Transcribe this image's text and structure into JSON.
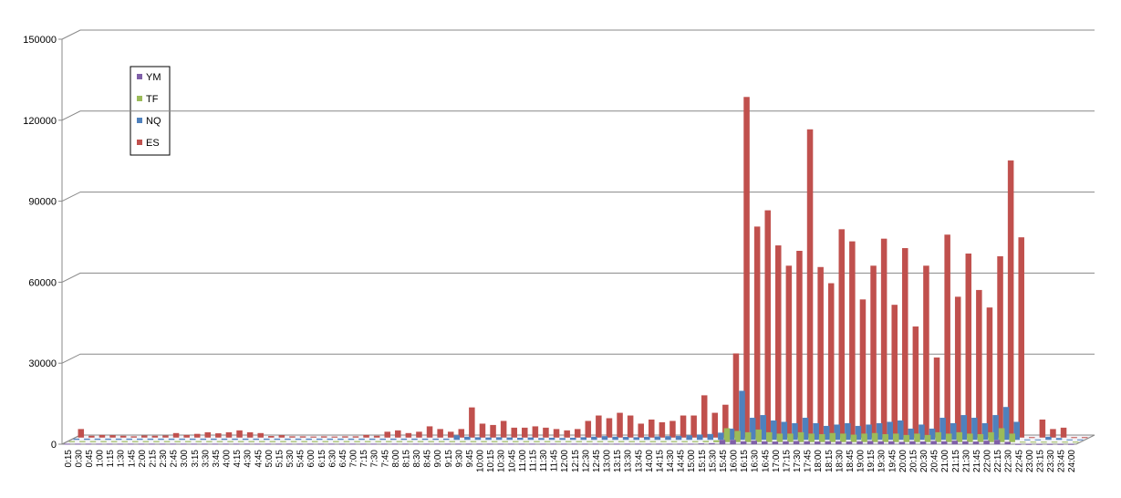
{
  "chart_data": {
    "type": "bar",
    "categories": [
      "0:15",
      "0:30",
      "0:45",
      "1:00",
      "1:15",
      "1:30",
      "1:45",
      "2:00",
      "2:15",
      "2:30",
      "2:45",
      "3:00",
      "3:15",
      "3:30",
      "3:45",
      "4:00",
      "4:15",
      "4:30",
      "4:45",
      "5:00",
      "5:15",
      "5:30",
      "5:45",
      "6:00",
      "6:15",
      "6:30",
      "6:45",
      "7:00",
      "7:15",
      "7:30",
      "7:45",
      "8:00",
      "8:15",
      "8:30",
      "8:45",
      "9:00",
      "9:15",
      "9:30",
      "9:45",
      "10:00",
      "10:15",
      "10:30",
      "10:45",
      "11:00",
      "11:15",
      "11:30",
      "11:45",
      "12:00",
      "12:15",
      "12:30",
      "12:45",
      "13:00",
      "13:15",
      "13:30",
      "13:45",
      "14:00",
      "14:15",
      "14:30",
      "14:45",
      "15:00",
      "15:15",
      "15:30",
      "15:45",
      "16:00",
      "16:15",
      "16:30",
      "16:45",
      "17:00",
      "17:15",
      "17:30",
      "17:45",
      "18:00",
      "18:15",
      "18:30",
      "18:45",
      "19:00",
      "19:15",
      "19:30",
      "19:45",
      "20:00",
      "20:15",
      "20:30",
      "20:45",
      "21:00",
      "21:15",
      "21:30",
      "21:45",
      "22:00",
      "22:15",
      "22:30",
      "22:45",
      "23:00",
      "23:15",
      "23:30",
      "23:45",
      "24:00"
    ],
    "series": [
      {
        "name": "YM",
        "color": "#7f5fa8",
        "values": [
          100,
          100,
          100,
          100,
          100,
          100,
          100,
          100,
          100,
          100,
          100,
          100,
          100,
          100,
          100,
          100,
          100,
          100,
          100,
          100,
          100,
          100,
          100,
          100,
          100,
          100,
          100,
          100,
          100,
          100,
          100,
          100,
          100,
          100,
          100,
          100,
          100,
          100,
          100,
          100,
          100,
          100,
          100,
          100,
          100,
          100,
          100,
          100,
          100,
          100,
          100,
          100,
          100,
          100,
          100,
          100,
          100,
          100,
          100,
          100,
          200,
          300,
          1500,
          1500,
          1000,
          1200,
          1000,
          900,
          1000,
          1100,
          1000,
          900,
          1000,
          1000,
          900,
          1000,
          1100,
          1000,
          1000,
          800,
          1000,
          900,
          1100,
          1000,
          1200,
          1000,
          900,
          1200,
          1500,
          800,
          0,
          0,
          0,
          0,
          0,
          0
        ]
      },
      {
        "name": "TF",
        "color": "#9bbb59",
        "values": [
          200,
          200,
          200,
          200,
          200,
          200,
          200,
          200,
          200,
          200,
          200,
          200,
          200,
          200,
          200,
          200,
          200,
          200,
          200,
          200,
          200,
          200,
          200,
          200,
          200,
          200,
          200,
          200,
          200,
          200,
          200,
          200,
          200,
          200,
          200,
          200,
          200,
          200,
          200,
          200,
          200,
          200,
          200,
          200,
          200,
          200,
          200,
          200,
          200,
          200,
          200,
          200,
          200,
          200,
          200,
          200,
          200,
          200,
          200,
          200,
          300,
          500,
          5000,
          4000,
          3500,
          4500,
          3500,
          3000,
          3000,
          3500,
          3000,
          2800,
          3200,
          3000,
          2600,
          3000,
          3200,
          2800,
          3000,
          2500,
          3000,
          2500,
          3500,
          3000,
          3500,
          3000,
          2800,
          3500,
          5000,
          3000,
          0,
          0,
          0,
          0,
          0,
          0
        ]
      },
      {
        "name": "NQ",
        "color": "#4f81bd",
        "values": [
          300,
          300,
          300,
          300,
          300,
          300,
          300,
          300,
          300,
          300,
          300,
          300,
          300,
          300,
          300,
          300,
          300,
          300,
          300,
          300,
          300,
          300,
          300,
          300,
          300,
          300,
          300,
          300,
          300,
          300,
          300,
          300,
          300,
          300,
          300,
          300,
          1500,
          1000,
          800,
          700,
          800,
          700,
          600,
          700,
          500,
          600,
          500,
          600,
          800,
          1000,
          1200,
          1000,
          900,
          800,
          1000,
          1100,
          1200,
          1300,
          1500,
          1800,
          2000,
          2500,
          4000,
          18000,
          8000,
          9000,
          7000,
          6500,
          6000,
          8000,
          6000,
          5000,
          5500,
          6000,
          5000,
          5500,
          6000,
          6500,
          7000,
          4000,
          5500,
          4000,
          8000,
          6000,
          9000,
          8000,
          6000,
          9000,
          12000,
          6500,
          0,
          0,
          1000,
          500,
          0,
          0
        ]
      },
      {
        "name": "ES",
        "color": "#c0504d",
        "values": [
          3000,
          500,
          800,
          700,
          500,
          300,
          600,
          500,
          600,
          1500,
          800,
          1200,
          1800,
          1400,
          1800,
          2500,
          1800,
          1500,
          400,
          700,
          300,
          300,
          200,
          300,
          200,
          300,
          300,
          800,
          500,
          2000,
          2500,
          1500,
          2000,
          4000,
          3000,
          2000,
          3000,
          11000,
          5000,
          4500,
          6000,
          3500,
          3500,
          4000,
          3500,
          3000,
          2500,
          3000,
          6000,
          8000,
          7000,
          9000,
          8000,
          5000,
          6500,
          5500,
          6000,
          8000,
          8000,
          15500,
          9000,
          12000,
          31000,
          126000,
          78000,
          84000,
          71000,
          63500,
          69000,
          114000,
          63000,
          57000,
          77000,
          72500,
          51000,
          63500,
          73500,
          49000,
          70000,
          41000,
          63500,
          29500,
          75000,
          52000,
          68000,
          54500,
          48000,
          67000,
          102500,
          74000,
          0,
          6500,
          3000,
          3500,
          0,
          0
        ]
      }
    ],
    "ylim": [
      0,
      150000
    ],
    "yticks": [
      0,
      30000,
      60000,
      90000,
      120000,
      150000
    ],
    "grid": true
  }
}
